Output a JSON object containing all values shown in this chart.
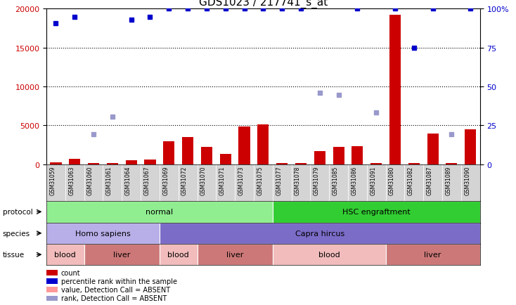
{
  "title": "GDS1023 / 217741_s_at",
  "samples": [
    "GSM31059",
    "GSM31063",
    "GSM31060",
    "GSM31061",
    "GSM31064",
    "GSM31067",
    "GSM31069",
    "GSM31072",
    "GSM31070",
    "GSM31071",
    "GSM31073",
    "GSM31075",
    "GSM31077",
    "GSM31078",
    "GSM31079",
    "GSM31085",
    "GSM31086",
    "GSM31091",
    "GSM31080",
    "GSM31082",
    "GSM31087",
    "GSM31089",
    "GSM31090"
  ],
  "count_values": [
    300,
    700,
    200,
    200,
    500,
    600,
    3000,
    3500,
    2200,
    1300,
    4900,
    5100,
    200,
    200,
    1700,
    2200,
    2300,
    200,
    19200,
    200,
    4000,
    200,
    4500
  ],
  "count_absent": [
    false,
    false,
    false,
    false,
    false,
    false,
    false,
    false,
    false,
    false,
    false,
    false,
    false,
    false,
    false,
    false,
    false,
    false,
    false,
    false,
    false,
    false,
    false
  ],
  "rank_values": [
    18100,
    18900,
    3900,
    6100,
    18600,
    18900,
    20000,
    20000,
    20000,
    20000,
    20000,
    20000,
    20000,
    20000,
    9200,
    8900,
    20000,
    6700,
    20000,
    15000,
    20000,
    3900,
    20000
  ],
  "rank_absent": [
    false,
    false,
    true,
    true,
    false,
    false,
    false,
    false,
    false,
    false,
    false,
    false,
    false,
    false,
    true,
    true,
    false,
    true,
    false,
    false,
    false,
    true,
    false
  ],
  "protocol_groups": [
    {
      "label": "normal",
      "start": 0,
      "end": 11,
      "color": "#90EE90"
    },
    {
      "label": "HSC engraftment",
      "start": 12,
      "end": 22,
      "color": "#32CD32"
    }
  ],
  "species_groups": [
    {
      "label": "Homo sapiens",
      "start": 0,
      "end": 5,
      "color": "#b8aee8"
    },
    {
      "label": "Capra hircus",
      "start": 6,
      "end": 22,
      "color": "#7b6cc8"
    }
  ],
  "tissue_groups": [
    {
      "label": "blood",
      "start": 0,
      "end": 1,
      "color": "#f2bcbc"
    },
    {
      "label": "liver",
      "start": 2,
      "end": 5,
      "color": "#cd7878"
    },
    {
      "label": "blood",
      "start": 6,
      "end": 7,
      "color": "#f2bcbc"
    },
    {
      "label": "liver",
      "start": 8,
      "end": 11,
      "color": "#cd7878"
    },
    {
      "label": "blood",
      "start": 12,
      "end": 17,
      "color": "#f2bcbc"
    },
    {
      "label": "liver",
      "start": 18,
      "end": 22,
      "color": "#cd7878"
    }
  ],
  "ylim_left": [
    0,
    20000
  ],
  "ylim_right": [
    0,
    100
  ],
  "yticks_left": [
    0,
    5000,
    10000,
    15000,
    20000
  ],
  "yticks_right": [
    0,
    25,
    50,
    75,
    100
  ],
  "bar_color": "#CC0000",
  "bar_absent_color": "#FF9999",
  "dot_color": "#0000CC",
  "dot_absent_color": "#9999CC",
  "legend_items": [
    {
      "label": "count",
      "color": "#CC0000"
    },
    {
      "label": "percentile rank within the sample",
      "color": "#0000CC"
    },
    {
      "label": "value, Detection Call = ABSENT",
      "color": "#FF9999"
    },
    {
      "label": "rank, Detection Call = ABSENT",
      "color": "#9999CC"
    }
  ],
  "row_labels": [
    "protocol",
    "species",
    "tissue"
  ]
}
